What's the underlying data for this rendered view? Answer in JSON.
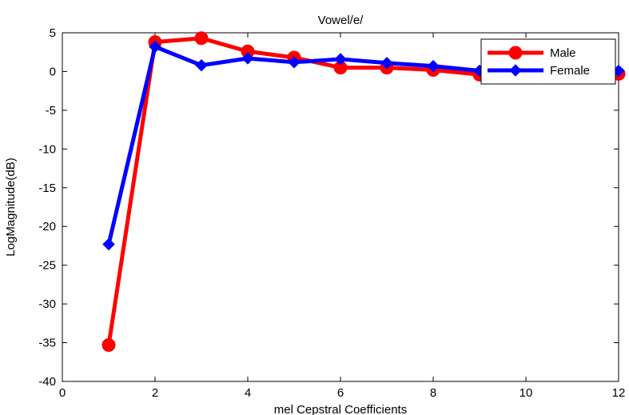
{
  "chart_data": {
    "type": "line",
    "title": "Vowel/e/",
    "xlabel": "mel Cepstral Coefficients",
    "ylabel": "LogMagnitude(dB)",
    "xlim": [
      0,
      12
    ],
    "ylim": [
      -40,
      5
    ],
    "xticks": [
      0,
      2,
      4,
      6,
      8,
      10,
      12
    ],
    "yticks": [
      5,
      0,
      -5,
      -10,
      -15,
      -20,
      -25,
      -30,
      -35,
      -40
    ],
    "grid": false,
    "legend_position": "top-right",
    "series": [
      {
        "name": "Male",
        "color": "#ff0000",
        "marker": "circle",
        "x": [
          1,
          2,
          3,
          4,
          5,
          6,
          7,
          8,
          9,
          10,
          11,
          12
        ],
        "y": [
          -35.3,
          3.8,
          4.3,
          2.6,
          1.8,
          0.5,
          0.5,
          0.2,
          -0.4,
          -0.6,
          -0.2,
          -0.3
        ]
      },
      {
        "name": "Female",
        "color": "#0000ff",
        "marker": "diamond",
        "x": [
          1,
          2,
          3,
          4,
          5,
          6,
          7,
          8,
          9,
          10,
          11,
          12
        ],
        "y": [
          -22.3,
          3.2,
          0.8,
          1.7,
          1.2,
          1.6,
          1.1,
          0.7,
          0.1,
          0.4,
          0.3,
          0.1
        ]
      }
    ]
  }
}
